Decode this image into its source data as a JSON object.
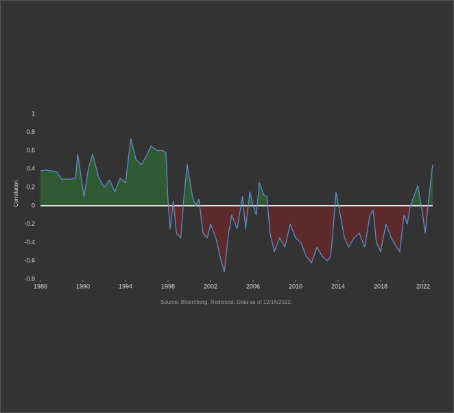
{
  "chart_data": {
    "type": "area",
    "y_label": "Correlation",
    "source": "Source: Bloomberg, Redwood. Data as of 12/16/2022.",
    "xlim": [
      1986,
      2022
    ],
    "xticks": [
      1986,
      1990,
      1994,
      1998,
      2002,
      2006,
      2010,
      2014,
      2018,
      2022
    ],
    "ylim": [
      -0.8,
      1
    ],
    "yticks": [
      1,
      0.8,
      0.6,
      0.4,
      0.2,
      0,
      -0.2,
      -0.4,
      -0.6,
      -0.8
    ],
    "line_color": "#5f8fc4",
    "positive_color": "#2f5a34",
    "negative_color": "#5c2a2b",
    "zero_line_color": "#ffffff",
    "x": [
      1986,
      1986.5,
      1987,
      1987.5,
      1988,
      1988.5,
      1989,
      1989.3,
      1989.5,
      1990.1,
      1990.5,
      1990.9,
      1991.5,
      1992,
      1992.5,
      1993,
      1993.5,
      1994,
      1994.5,
      1995,
      1995.5,
      1996,
      1996.4,
      1997,
      1997.5,
      1997.8,
      1998,
      1998.2,
      1998.5,
      1998.8,
      1999.2,
      1999.5,
      1999.8,
      2000.3,
      2000.6,
      2000.9,
      2001.3,
      2001.7,
      2002,
      2002.5,
      2003,
      2003.3,
      2003.7,
      2004,
      2004.5,
      2005,
      2005.3,
      2005.7,
      2006,
      2006.3,
      2006.6,
      2007,
      2007.3,
      2007.6,
      2008,
      2008.5,
      2009,
      2009.5,
      2010,
      2010.5,
      2011,
      2011.5,
      2012,
      2012.5,
      2013,
      2013.3,
      2013.5,
      2013.8,
      2014.2,
      2014.6,
      2015,
      2015.5,
      2016,
      2016.5,
      2017,
      2017.3,
      2017.6,
      2018,
      2018.5,
      2019,
      2019.5,
      2019.8,
      2020.2,
      2020.5,
      2020.8,
      2021.5,
      2021.9,
      2022.2,
      2022.5,
      2022.9
    ],
    "values": [
      0.38,
      0.39,
      0.38,
      0.37,
      0.29,
      0.29,
      0.29,
      0.3,
      0.56,
      0.1,
      0.4,
      0.56,
      0.3,
      0.2,
      0.28,
      0.15,
      0.3,
      0.25,
      0.73,
      0.5,
      0.45,
      0.55,
      0.65,
      0.6,
      0.6,
      0.58,
      0.05,
      -0.25,
      0.05,
      -0.3,
      -0.35,
      0.1,
      0.45,
      0.1,
      0,
      0.07,
      -0.3,
      -0.35,
      -0.2,
      -0.35,
      -0.6,
      -0.72,
      -0.3,
      -0.1,
      -0.25,
      0.1,
      -0.25,
      0.15,
      0,
      -0.1,
      0.25,
      0.12,
      0.1,
      -0.3,
      -0.5,
      -0.35,
      -0.45,
      -0.2,
      -0.35,
      -0.4,
      -0.55,
      -0.62,
      -0.45,
      -0.55,
      -0.6,
      -0.55,
      -0.3,
      0.15,
      -0.1,
      -0.35,
      -0.45,
      -0.35,
      -0.3,
      -0.45,
      -0.1,
      -0.05,
      -0.4,
      -0.5,
      -0.2,
      -0.35,
      -0.45,
      -0.5,
      -0.1,
      -0.2,
      0,
      0.22,
      -0.05,
      -0.3,
      0.05,
      0.45
    ]
  }
}
